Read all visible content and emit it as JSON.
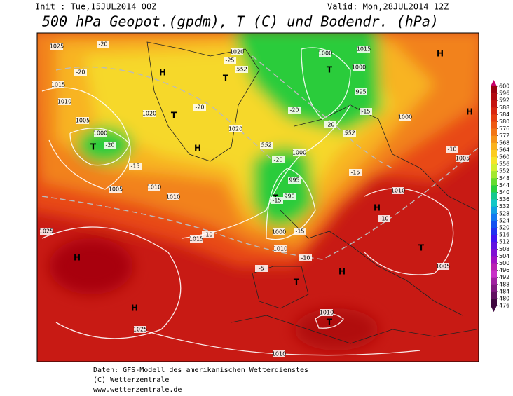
{
  "header": {
    "init": "Init : Tue,15JUL2014 00Z",
    "valid": "Valid: Mon,28JUL2014 12Z",
    "title": "500 hPa Geopot.(gpdm), T (C) und Bodendr. (hPa)"
  },
  "colorbar": {
    "ticks": [
      600,
      596,
      592,
      588,
      584,
      580,
      576,
      572,
      568,
      564,
      560,
      556,
      552,
      548,
      544,
      540,
      536,
      532,
      528,
      524,
      520,
      516,
      512,
      508,
      504,
      500,
      496,
      492,
      488,
      484,
      480,
      476
    ],
    "colors": [
      "#c8006a",
      "#9a0010",
      "#b00810",
      "#c41410",
      "#d82610",
      "#e63e10",
      "#ee5a12",
      "#f27614",
      "#f69418",
      "#fab21c",
      "#fccc20",
      "#f6e428",
      "#d2f030",
      "#a2e830",
      "#64dc30",
      "#28d040",
      "#14c88e",
      "#12c6c6",
      "#10a0e2",
      "#1078f0",
      "#1050f0",
      "#2030f0",
      "#4012f0",
      "#6010e0",
      "#8010d2",
      "#a010c2",
      "#b820b2",
      "#c830c8",
      "#a020a0",
      "#801880",
      "#601060",
      "#400840"
    ]
  },
  "map": {
    "highs": [
      "H",
      "H",
      "H",
      "H",
      "H",
      "H",
      "H",
      "H"
    ],
    "lows": [
      "T",
      "T",
      "T",
      "T",
      "T",
      "T",
      "T",
      "T",
      "T"
    ],
    "isobars": [
      "1025",
      "1015",
      "1010",
      "1005",
      "1000",
      "1020",
      "1020",
      "1020",
      "1000",
      "1000",
      "995",
      "1000",
      "1000",
      "995",
      "990",
      "1000",
      "1010",
      "1005",
      "1010",
      "1010",
      "1015",
      "1025",
      "1025",
      "1010",
      "1010",
      "1005",
      "1010",
      "1005",
      "1015"
    ],
    "isotherms": [
      "-20",
      "-20",
      "-20",
      "-15",
      "-20",
      "-25",
      "-20",
      "-20",
      "-15",
      "-20",
      "-15",
      "-15",
      "-10",
      "-10",
      "-15",
      "-10",
      "-5",
      "-10"
    ],
    "geopotential": [
      "552",
      "552",
      "552"
    ]
  },
  "footer": {
    "lines": [
      "Daten: GFS-Modell des amerikanischen Wetterdienstes",
      "(C) Wetterzentrale",
      "www.wetterzentrale.de"
    ]
  }
}
